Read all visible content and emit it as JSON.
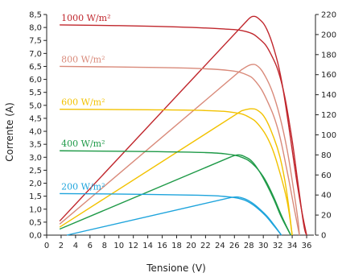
{
  "chart_data": {
    "type": "line",
    "xlabel": "Tensione (V)",
    "ylabel": "Corrente (A)",
    "xlim": [
      0,
      37
    ],
    "ylim_left": [
      0,
      8.5
    ],
    "ylim_right": [
      0,
      220
    ],
    "x_ticks": [
      "0",
      "2",
      "4",
      "6",
      "8",
      "10",
      "12",
      "14",
      "16",
      "18",
      "20",
      "22",
      "24",
      "26",
      "28",
      "30",
      "32",
      "34",
      "36"
    ],
    "y_left_ticks": [
      "0,0",
      "0,5",
      "1,0",
      "1,5",
      "2,0",
      "2,5",
      "3,0",
      "3,5",
      "4,0",
      "4,5",
      "5,0",
      "5,5",
      "6,0",
      "6,5",
      "7,0",
      "7,5",
      "8,0",
      "8,5"
    ],
    "y_right_ticks": [
      "0",
      "20",
      "40",
      "60",
      "80",
      "100",
      "120",
      "140",
      "160",
      "180",
      "200",
      "220"
    ],
    "series": [
      {
        "name": "1000 W/m²",
        "color": "#c0272d",
        "iv": [
          [
            1.8,
            8.1
          ],
          [
            10,
            8.07
          ],
          [
            18,
            8.02
          ],
          [
            24,
            7.95
          ],
          [
            27.5,
            7.85
          ],
          [
            29.5,
            7.55
          ],
          [
            31,
            7.0
          ],
          [
            32.5,
            5.9
          ],
          [
            33.8,
            4.0
          ],
          [
            34.8,
            2.0
          ],
          [
            35.6,
            0.4
          ],
          [
            36,
            0.0
          ]
        ],
        "pv": [
          [
            1.8,
            14
          ],
          [
            27.5,
            212
          ],
          [
            28.5,
            218
          ],
          [
            29.5,
            215
          ],
          [
            30.5,
            205
          ],
          [
            31.5,
            185
          ],
          [
            32.5,
            155
          ],
          [
            33.5,
            110
          ],
          [
            34.5,
            60
          ],
          [
            35.3,
            25
          ],
          [
            36,
            0
          ]
        ]
      },
      {
        "name": "800 W/m²",
        "color": "#d98a7a",
        "iv": [
          [
            1.8,
            6.5
          ],
          [
            12,
            6.47
          ],
          [
            20,
            6.43
          ],
          [
            25,
            6.35
          ],
          [
            27.5,
            6.2
          ],
          [
            29,
            5.9
          ],
          [
            30.5,
            5.2
          ],
          [
            32,
            4.1
          ],
          [
            33.2,
            2.6
          ],
          [
            34.3,
            1.0
          ],
          [
            35,
            0.0
          ]
        ],
        "pv": [
          [
            1.8,
            11
          ],
          [
            27,
            165
          ],
          [
            28.3,
            170
          ],
          [
            29.3,
            168
          ],
          [
            30.3,
            158
          ],
          [
            31.3,
            142
          ],
          [
            32.3,
            118
          ],
          [
            33.3,
            85
          ],
          [
            34.2,
            45
          ],
          [
            34.8,
            15
          ],
          [
            35,
            0
          ]
        ]
      },
      {
        "name": "600 W/m²",
        "color": "#f2c200",
        "iv": [
          [
            1.8,
            4.85
          ],
          [
            14,
            4.83
          ],
          [
            22,
            4.8
          ],
          [
            26,
            4.72
          ],
          [
            28,
            4.55
          ],
          [
            29.5,
            4.2
          ],
          [
            31,
            3.5
          ],
          [
            32.2,
            2.5
          ],
          [
            33.3,
            1.3
          ],
          [
            34,
            0.0
          ]
        ],
        "pv": [
          [
            1.8,
            8
          ],
          [
            27,
            124
          ],
          [
            28.3,
            126
          ],
          [
            29.3,
            124
          ],
          [
            30.3,
            116
          ],
          [
            31.3,
            100
          ],
          [
            32.3,
            78
          ],
          [
            33.2,
            45
          ],
          [
            34,
            0
          ]
        ]
      },
      {
        "name": "400 W/m²",
        "color": "#1f9a48",
        "iv": [
          [
            1.8,
            3.25
          ],
          [
            14,
            3.22
          ],
          [
            22,
            3.18
          ],
          [
            25,
            3.12
          ],
          [
            27,
            3.0
          ],
          [
            28.5,
            2.75
          ],
          [
            30,
            2.25
          ],
          [
            31.3,
            1.55
          ],
          [
            32.6,
            0.7
          ],
          [
            33.8,
            0.0
          ]
        ],
        "pv": [
          [
            1.8,
            6
          ],
          [
            25.5,
            78
          ],
          [
            26.5,
            80
          ],
          [
            27.5,
            78
          ],
          [
            28.5,
            73
          ],
          [
            29.5,
            63
          ],
          [
            30.5,
            50
          ],
          [
            31.5,
            35
          ],
          [
            32.5,
            18
          ],
          [
            33.8,
            0
          ]
        ]
      },
      {
        "name": "200 W/m²",
        "color": "#1ea4dc",
        "iv": [
          [
            1.8,
            1.6
          ],
          [
            14,
            1.57
          ],
          [
            22,
            1.53
          ],
          [
            25,
            1.48
          ],
          [
            26.5,
            1.42
          ],
          [
            27.8,
            1.3
          ],
          [
            29,
            1.08
          ],
          [
            30.3,
            0.75
          ],
          [
            31.5,
            0.35
          ],
          [
            32.5,
            0.0
          ]
        ],
        "pv": [
          [
            2.8,
            0
          ],
          [
            25.5,
            37.5
          ],
          [
            26.5,
            38
          ],
          [
            27.5,
            36
          ],
          [
            28.5,
            32
          ],
          [
            29.5,
            26
          ],
          [
            30.5,
            19
          ],
          [
            31.5,
            10
          ],
          [
            32.5,
            0
          ]
        ]
      }
    ]
  }
}
